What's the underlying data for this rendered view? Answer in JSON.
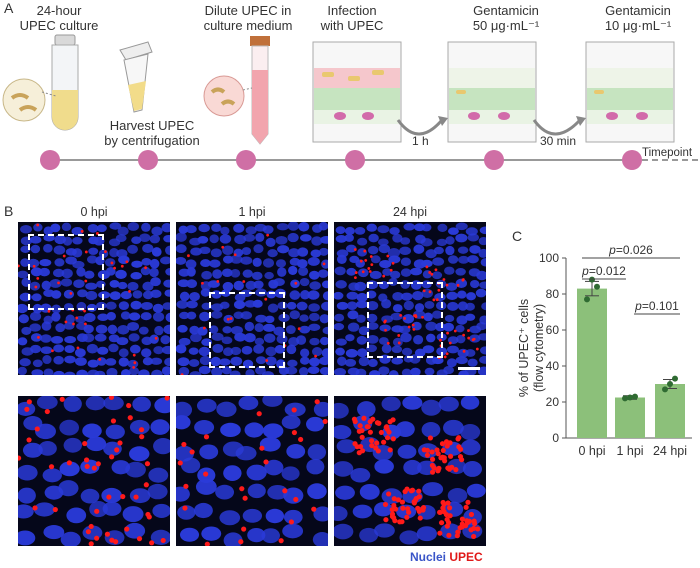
{
  "panels": {
    "a": "A",
    "b": "B",
    "c": "C"
  },
  "timeline": {
    "steps": [
      {
        "label": "24-hour\nUPEC culture"
      },
      {
        "label": "Harvest UPEC\nby centrifugation"
      },
      {
        "label": "Dilute UPEC in\nculture medium"
      },
      {
        "label": "Infection\nwith UPEC"
      },
      {
        "label": "Gentamicin\n50 μg·mL⁻¹"
      },
      {
        "label": "Gentamicin\n10 μg·mL⁻¹"
      }
    ],
    "intervals": [
      "1 h",
      "30 min"
    ],
    "axis_label": "Timepoint",
    "dot_color": "#cf6fa5"
  },
  "micrographs": {
    "columns": [
      "0 hpi",
      "1 hpi",
      "24 hpi"
    ],
    "legend_nuclei": "Nuclei",
    "legend_upec": "UPEC",
    "nuclei_color": "#2a3ad8",
    "upec_color": "#ff1a1a"
  },
  "chart_data": {
    "type": "bar",
    "categories": [
      "0 hpi",
      "1 hpi",
      "24 hpi"
    ],
    "values": [
      83,
      22.5,
      30
    ],
    "errors": [
      4,
      1,
      2.5
    ],
    "points": [
      [
        77,
        88,
        84
      ],
      [
        22,
        22.5,
        23
      ],
      [
        27,
        30,
        33
      ]
    ],
    "ylabel_line1": "% of UPEC⁺ cells",
    "ylabel_line2": "(flow cytometry)",
    "ylim": [
      0,
      100
    ],
    "yticks": [
      0,
      20,
      40,
      60,
      80,
      100
    ],
    "bar_color": "#8cc07a",
    "point_color": "#2f6b32",
    "comparisons": [
      {
        "from": 0,
        "to": 1,
        "label": "p=0.012"
      },
      {
        "from": 1,
        "to": 2,
        "label": "p=0.101"
      },
      {
        "from": 0,
        "to": 2,
        "label": "p=0.026"
      }
    ]
  }
}
